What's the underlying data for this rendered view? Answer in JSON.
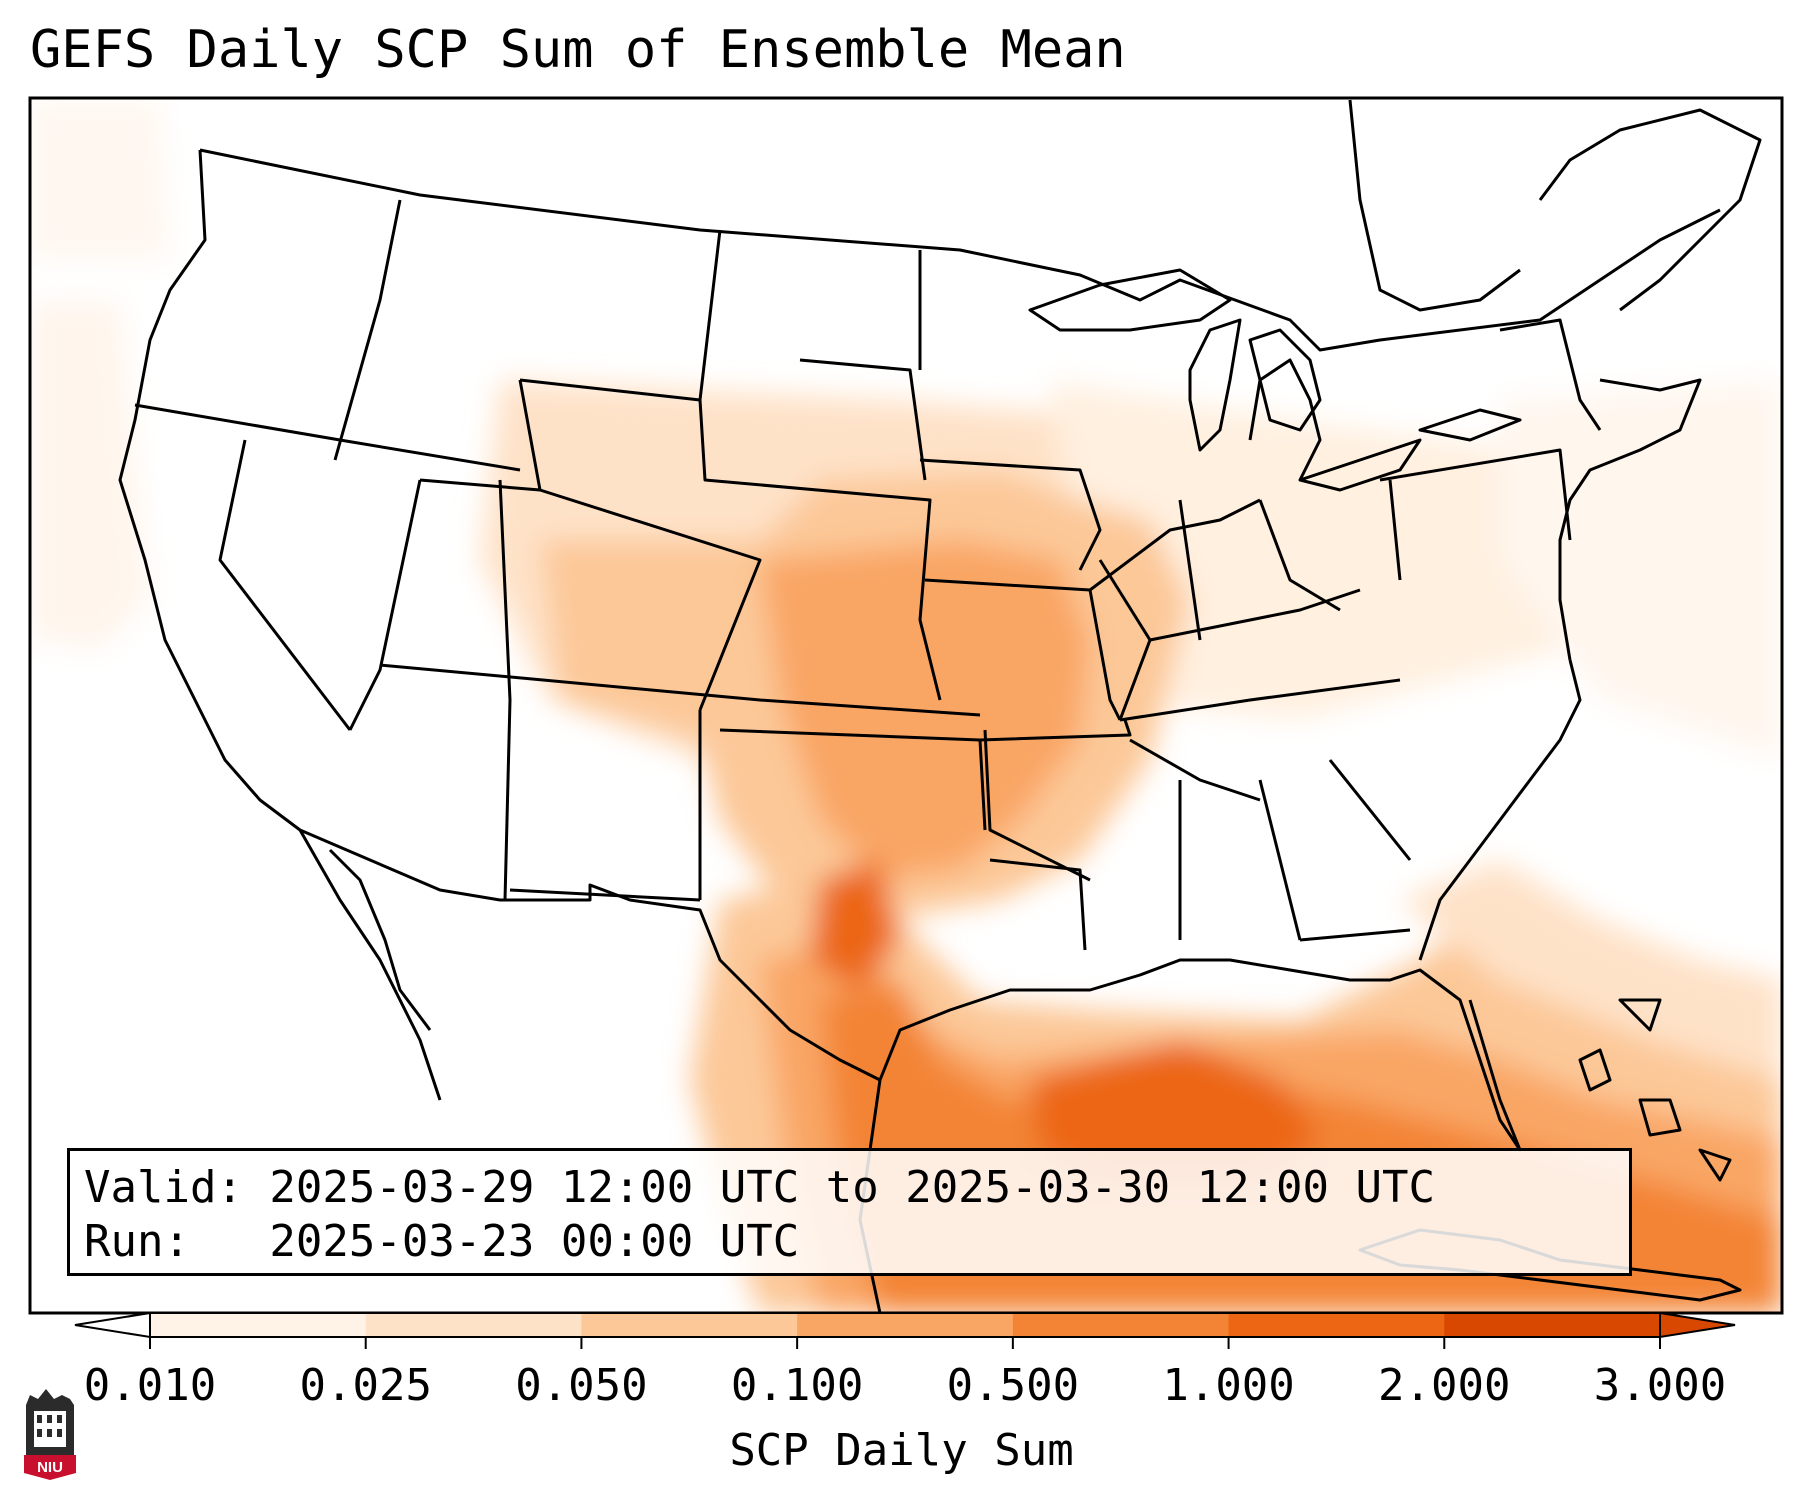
{
  "title": "GEFS Daily SCP Sum of Ensemble Mean",
  "info": {
    "valid_line": "Valid: 2025-03-29 12:00 UTC to 2025-03-30 12:00 UTC",
    "run_line": "Run:   2025-03-23 00:00 UTC"
  },
  "colorbar": {
    "label": "SCP Daily Sum",
    "ticks": [
      "0.010",
      "0.025",
      "0.050",
      "0.100",
      "0.500",
      "1.000",
      "2.000",
      "3.000"
    ],
    "colors": [
      "#fff3e8",
      "#fee2c8",
      "#fcc898",
      "#f9a665",
      "#f38435",
      "#ec6613",
      "#d94801"
    ]
  },
  "logo": {
    "text": "NIU"
  }
}
